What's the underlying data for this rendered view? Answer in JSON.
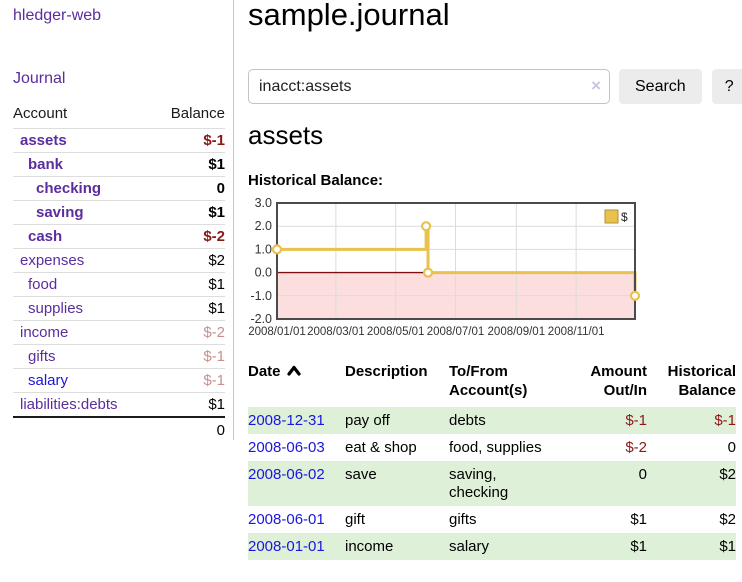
{
  "app": {
    "title": "hledger-web"
  },
  "colors": {
    "link-purple": "#5b2d9e",
    "link-blue": "#1a16dd",
    "negative-strong": "#8b1717",
    "negative-light": "#c98f8f",
    "row-stripe-green": "#dff0d8",
    "button-gray": "#ececec",
    "chart-line-gold": "#e8c24d"
  },
  "sidebar": {
    "journal_link": "Journal",
    "headers": {
      "account": "Account",
      "balance": "Balance"
    },
    "accounts": [
      {
        "name": "assets",
        "balance": "$-1"
      },
      {
        "name": "bank",
        "balance": "$1"
      },
      {
        "name": "checking",
        "balance": "0"
      },
      {
        "name": "saving",
        "balance": "$1"
      },
      {
        "name": "cash",
        "balance": "$-2"
      },
      {
        "name": "expenses",
        "balance": "$2"
      },
      {
        "name": "food",
        "balance": "$1"
      },
      {
        "name": "supplies",
        "balance": "$1"
      },
      {
        "name": "income",
        "balance": "$-2"
      },
      {
        "name": "gifts",
        "balance": "$-1"
      },
      {
        "name": "salary",
        "balance": "$-1"
      },
      {
        "name": "liabilities:debts",
        "balance": "$1"
      }
    ],
    "total": "0"
  },
  "main": {
    "title": "sample.journal",
    "search": {
      "value": "inacct:assets",
      "clear_icon": "×",
      "button_label": "Search",
      "help_label": "?"
    },
    "account_heading": "assets",
    "chart_label": "Historical Balance:"
  },
  "chart_data": {
    "type": "line",
    "title": "Historical Balance:",
    "xlabel": "",
    "ylabel": "",
    "ylim": [
      -2,
      3
    ],
    "yticks": [
      3,
      2,
      1,
      0,
      -1,
      -2
    ],
    "xticks": [
      {
        "label": "2008/01/01",
        "day": 0
      },
      {
        "label": "2008/03/01",
        "day": 60
      },
      {
        "label": "2008/05/01",
        "day": 121
      },
      {
        "label": "2008/07/01",
        "day": 182
      },
      {
        "label": "2008/09/01",
        "day": 244
      },
      {
        "label": "2008/11/01",
        "day": 305
      }
    ],
    "xmax_day": 365,
    "grid": true,
    "legend_position": "top-right",
    "series": [
      {
        "name": "$",
        "color": "#e8c24d",
        "step": "after",
        "points": [
          {
            "date": "2008-01-01",
            "day": 0,
            "value": 1
          },
          {
            "date": "2008-06-01",
            "day": 152,
            "value": 2
          },
          {
            "date": "2008-06-03",
            "day": 154,
            "value": 0
          },
          {
            "date": "2008-12-31",
            "day": 365,
            "value": -1
          }
        ]
      }
    ],
    "negative_region_fill": "#fcdede",
    "zero_line_color": "#7b1113"
  },
  "transactions": {
    "headers": {
      "date": "Date",
      "description": "Description",
      "accounts": "To/From Account(s)",
      "amount": "Amount Out/In",
      "balance": "Historical Balance"
    },
    "rows": [
      {
        "date": "2008-12-31",
        "description": "pay off",
        "accounts": "debts",
        "amount": "$-1",
        "balance": "$-1"
      },
      {
        "date": "2008-06-03",
        "description": "eat & shop",
        "accounts": "food, supplies",
        "amount": "$-2",
        "balance": "0"
      },
      {
        "date": "2008-06-02",
        "description": "save",
        "accounts": "saving,\nchecking",
        "amount": "0",
        "balance": "$2"
      },
      {
        "date": "2008-06-01",
        "description": "gift",
        "accounts": "gifts",
        "amount": "$1",
        "balance": "$2"
      },
      {
        "date": "2008-01-01",
        "description": "income",
        "accounts": "salary",
        "amount": "$1",
        "balance": "$1"
      }
    ]
  }
}
